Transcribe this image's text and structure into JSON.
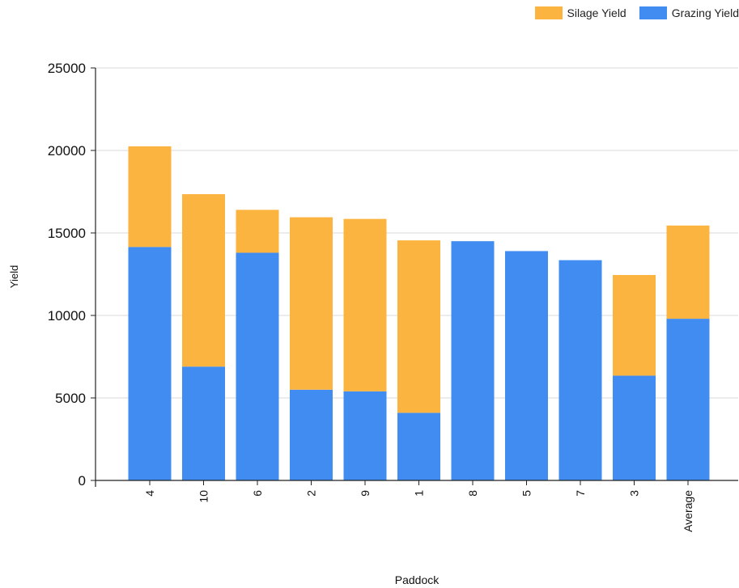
{
  "chart_data": {
    "type": "bar",
    "stacked": true,
    "xlabel": "Paddock",
    "ylabel": "Yield",
    "ylim": [
      0,
      25000
    ],
    "yticks": [
      0,
      5000,
      10000,
      15000,
      20000,
      25000
    ],
    "grid": true,
    "legend_position": "top-right",
    "categories": [
      "4",
      "10",
      "6",
      "2",
      "9",
      "1",
      "8",
      "5",
      "7",
      "3",
      "Average"
    ],
    "series": [
      {
        "name": "Grazing Yield",
        "color": "#418cf0",
        "values": [
          14150,
          6900,
          13800,
          5500,
          5400,
          4100,
          14500,
          13900,
          13350,
          6350,
          9800
        ]
      },
      {
        "name": "Silage Yield",
        "color": "#fcb441",
        "values": [
          6100,
          10450,
          2600,
          10450,
          10450,
          10450,
          0,
          0,
          0,
          6100,
          5650
        ]
      }
    ],
    "legend_order": [
      "Silage Yield",
      "Grazing Yield"
    ]
  }
}
